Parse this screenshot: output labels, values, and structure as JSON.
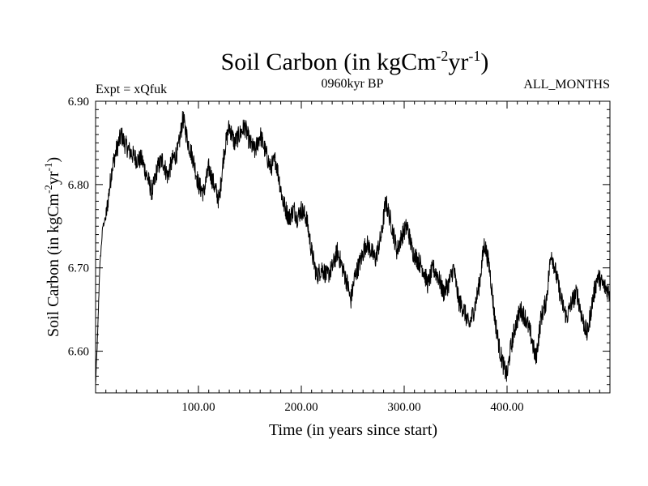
{
  "chart_data": {
    "type": "line",
    "title": "Soil Carbon (in kgCm",
    "title_sup1": "-2",
    "title_mid": "yr",
    "title_sup2": "-1",
    "title_end": ")",
    "subtitle_left": "Expt = xQfuk",
    "subtitle_center": "0960kyr BP",
    "subtitle_right": "ALL_MONTHS",
    "xlabel": "Time (in years since start)",
    "ylabel": "Soil Carbon (in kgCm",
    "ylabel_sup1": "-2",
    "ylabel_mid": "yr",
    "ylabel_sup2": "-1",
    "ylabel_end": ")",
    "xlim": [
      0,
      500
    ],
    "ylim": [
      6.55,
      6.9
    ],
    "x_ticks": [
      100,
      200,
      300,
      400
    ],
    "x_tick_labels": [
      "100.00",
      "200.00",
      "300.00",
      "400.00"
    ],
    "y_ticks": [
      6.6,
      6.7,
      6.8,
      6.9
    ],
    "y_tick_labels": [
      "6.60",
      "6.70",
      "6.80",
      "6.90"
    ],
    "line_color": "#000000",
    "noise_amplitude": 0.012,
    "series": [
      {
        "name": "Soil Carbon",
        "x": [
          0,
          2,
          4,
          7,
          10,
          13,
          16,
          20,
          25,
          28,
          33,
          40,
          45,
          50,
          55,
          60,
          65,
          70,
          75,
          80,
          85,
          90,
          95,
          100,
          105,
          110,
          115,
          120,
          125,
          130,
          135,
          140,
          145,
          150,
          155,
          160,
          165,
          170,
          175,
          178,
          182,
          188,
          193,
          196,
          200,
          205,
          210,
          215,
          220,
          225,
          230,
          235,
          240,
          245,
          248,
          252,
          258,
          263,
          268,
          272,
          278,
          282,
          288,
          293,
          298,
          303,
          308,
          313,
          318,
          323,
          328,
          333,
          338,
          343,
          348,
          353,
          358,
          363,
          368,
          373,
          378,
          383,
          388,
          393,
          397,
          400,
          403,
          408,
          413,
          418,
          423,
          428,
          433,
          438,
          443,
          448,
          453,
          458,
          463,
          468,
          473,
          478,
          483,
          488,
          493,
          500
        ],
        "values": [
          6.56,
          6.62,
          6.7,
          6.75,
          6.76,
          6.79,
          6.82,
          6.84,
          6.86,
          6.85,
          6.84,
          6.83,
          6.83,
          6.81,
          6.79,
          6.82,
          6.83,
          6.81,
          6.83,
          6.84,
          6.88,
          6.85,
          6.83,
          6.8,
          6.79,
          6.82,
          6.8,
          6.78,
          6.84,
          6.87,
          6.85,
          6.86,
          6.87,
          6.85,
          6.84,
          6.86,
          6.84,
          6.82,
          6.83,
          6.81,
          6.78,
          6.76,
          6.77,
          6.76,
          6.77,
          6.76,
          6.72,
          6.69,
          6.7,
          6.69,
          6.7,
          6.72,
          6.7,
          6.68,
          6.66,
          6.69,
          6.71,
          6.73,
          6.72,
          6.71,
          6.74,
          6.78,
          6.75,
          6.72,
          6.74,
          6.75,
          6.72,
          6.71,
          6.7,
          6.68,
          6.7,
          6.69,
          6.67,
          6.68,
          6.7,
          6.66,
          6.65,
          6.63,
          6.65,
          6.68,
          6.73,
          6.7,
          6.64,
          6.6,
          6.58,
          6.57,
          6.6,
          6.63,
          6.65,
          6.64,
          6.62,
          6.59,
          6.64,
          6.66,
          6.72,
          6.69,
          6.66,
          6.64,
          6.66,
          6.67,
          6.64,
          6.62,
          6.66,
          6.69,
          6.68,
          6.67
        ]
      }
    ]
  }
}
